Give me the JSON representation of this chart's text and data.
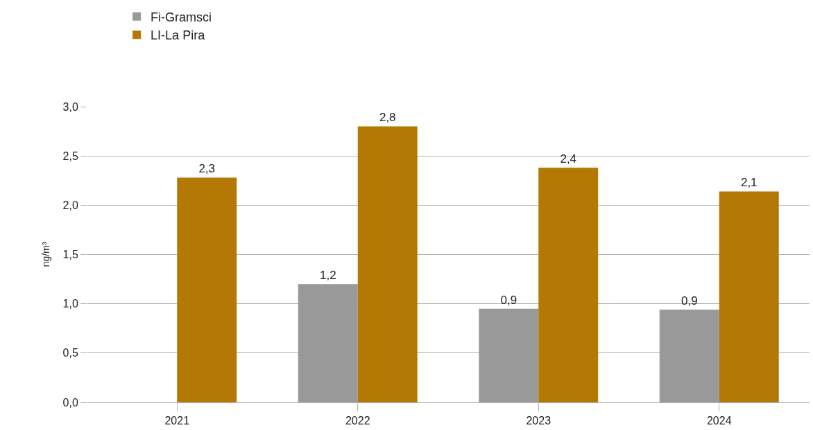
{
  "chart_data": {
    "type": "bar",
    "ylabel": "ng/m³",
    "categories": [
      "2021",
      "2022",
      "2023",
      "2024"
    ],
    "series": [
      {
        "name": "Fi-Gramsci",
        "color": "#999999",
        "values": [
          null,
          1.2,
          0.95,
          0.94
        ],
        "value_labels": [
          null,
          "1,2",
          "0,9",
          "0,9"
        ]
      },
      {
        "name": "LI-La Pira",
        "color": "#b47804",
        "values": [
          2.28,
          2.8,
          2.38,
          2.14
        ],
        "value_labels": [
          "2,3",
          "2,8",
          "2,4",
          "2,1"
        ]
      }
    ],
    "ylim": [
      0,
      3
    ],
    "yticks": [
      {
        "value": 0,
        "label": "0,0"
      },
      {
        "value": 0.5,
        "label": "0,5"
      },
      {
        "value": 1,
        "label": "1,0"
      },
      {
        "value": 1.5,
        "label": "1,5"
      },
      {
        "value": 2,
        "label": "2,0"
      },
      {
        "value": 2.5,
        "label": "2,5"
      },
      {
        "value": 3,
        "label": "3,0"
      }
    ],
    "grid": "y",
    "legend": "top left"
  }
}
